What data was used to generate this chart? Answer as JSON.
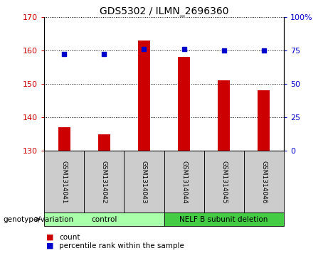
{
  "title": "GDS5302 / ILMN_2696360",
  "samples": [
    "GSM1314041",
    "GSM1314042",
    "GSM1314043",
    "GSM1314044",
    "GSM1314045",
    "GSM1314046"
  ],
  "count_values": [
    137,
    135,
    163,
    158,
    151,
    148
  ],
  "percentile_values": [
    72,
    72,
    76,
    76,
    75,
    75
  ],
  "ylim_left": [
    130,
    170
  ],
  "ylim_right": [
    0,
    100
  ],
  "yticks_left": [
    130,
    140,
    150,
    160,
    170
  ],
  "yticks_right": [
    0,
    25,
    50,
    75,
    100
  ],
  "ytick_labels_right": [
    "0",
    "25",
    "50",
    "75",
    "100%"
  ],
  "bar_color": "#cc0000",
  "dot_color": "#0000cc",
  "groups": [
    {
      "label": "control",
      "indices": [
        0,
        1,
        2
      ],
      "color": "#aaffaa"
    },
    {
      "label": "NELF B subunit deletion",
      "indices": [
        3,
        4,
        5
      ],
      "color": "#44cc44"
    }
  ],
  "genotype_label": "genotype/variation",
  "legend_count_label": "count",
  "legend_percentile_label": "percentile rank within the sample",
  "plot_bg_color": "#ffffff",
  "sample_bg_color": "#cccccc",
  "bar_width": 0.3
}
